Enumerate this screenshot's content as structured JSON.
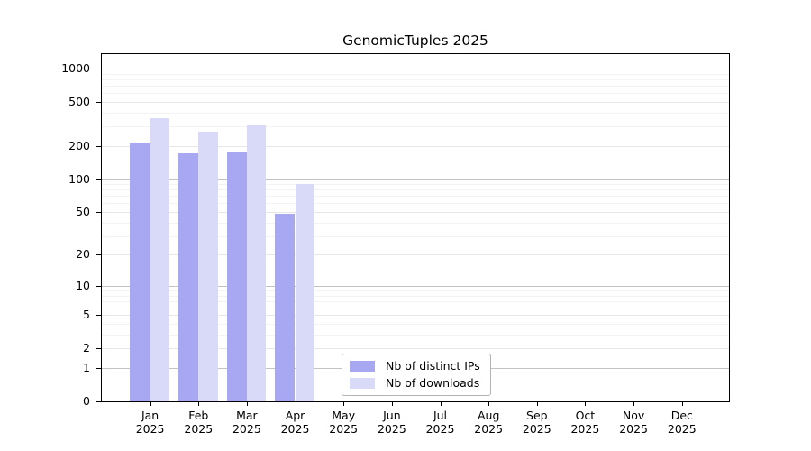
{
  "title": "GenomicTuples 2025",
  "chart_data": {
    "type": "bar",
    "title": "GenomicTuples 2025",
    "y_scale": "log1p",
    "grid": true,
    "y_ticks": [
      0,
      1,
      2,
      5,
      10,
      20,
      50,
      100,
      200,
      500,
      1000
    ],
    "y_axis_max": 1000,
    "categories": [
      "Jan",
      "Feb",
      "Mar",
      "Apr",
      "May",
      "Jun",
      "Jul",
      "Aug",
      "Sep",
      "Oct",
      "Nov",
      "Dec"
    ],
    "x_tick_year": "2025",
    "series": [
      {
        "name": "Nb of distinct IPs",
        "color": "#a8a8f2",
        "values": [
          210,
          170,
          178,
          48,
          null,
          null,
          null,
          null,
          null,
          null,
          null,
          null
        ]
      },
      {
        "name": "Nb of downloads",
        "color": "#d9d9f8",
        "values": [
          355,
          270,
          308,
          91,
          null,
          null,
          null,
          null,
          null,
          null,
          null,
          null
        ]
      }
    ],
    "legend_position": "bottom-center-inside"
  },
  "colors": {
    "background": "#ffffff",
    "axis": "#000000",
    "grid_major": "#c3c3c3",
    "grid_mid": "#e6e6e6",
    "grid_minor": "#f3f3f3",
    "legend_border": "#b3b3b3"
  }
}
